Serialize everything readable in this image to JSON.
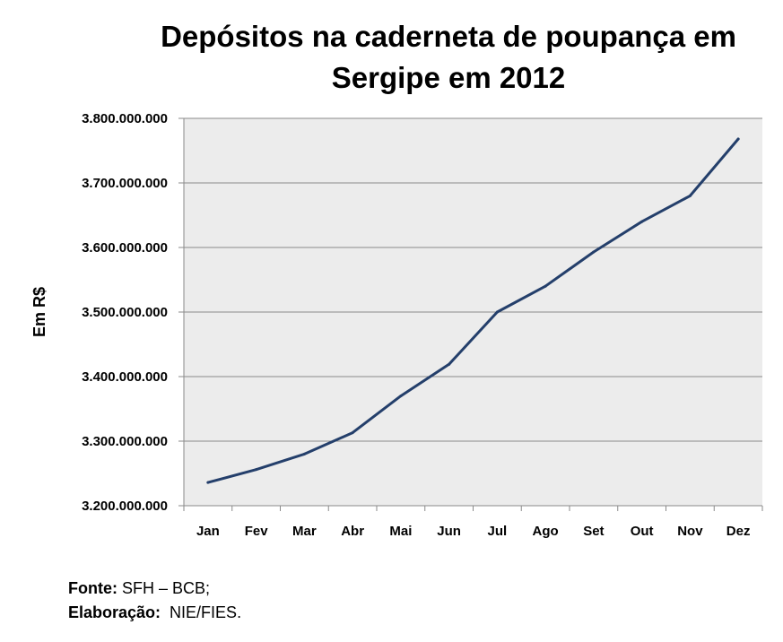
{
  "chart_data": {
    "type": "line",
    "title_lines": [
      "Depósitos na caderneta de poupança em",
      "Sergipe em 2012"
    ],
    "ylabel": "Em R$",
    "xlabel": "",
    "categories": [
      "Jan",
      "Fev",
      "Mar",
      "Abr",
      "Mai",
      "Jun",
      "Jul",
      "Ago",
      "Set",
      "Out",
      "Nov",
      "Dez"
    ],
    "series": [
      {
        "values": [
          3236000000,
          3256000000,
          3280000000,
          3313000000,
          3370000000,
          3419000000,
          3500000000,
          3540000000,
          3593000000,
          3640000000,
          3680000000,
          3768000000
        ],
        "color": "#243f6b"
      }
    ],
    "ylim": [
      3200000000,
      3800000000
    ],
    "yticks": [
      {
        "value": 3200000000,
        "label": "3.200.000.000"
      },
      {
        "value": 3300000000,
        "label": "3.300.000.000"
      },
      {
        "value": 3400000000,
        "label": "3.400.000.000"
      },
      {
        "value": 3500000000,
        "label": "3.500.000.000"
      },
      {
        "value": 3600000000,
        "label": "3.600.000.000"
      },
      {
        "value": 3700000000,
        "label": "3.700.000.000"
      },
      {
        "value": 3800000000,
        "label": "3.800.000.000"
      }
    ],
    "grid": true,
    "legend": "none",
    "plot_background": "#ececec",
    "gridline_color": "#8a8a8a"
  },
  "footer": {
    "source_label": "Fonte:",
    "source_value": " SFH – BCB;",
    "credit_label": "Elaboração:",
    "credit_value": "  NIE/FIES."
  }
}
